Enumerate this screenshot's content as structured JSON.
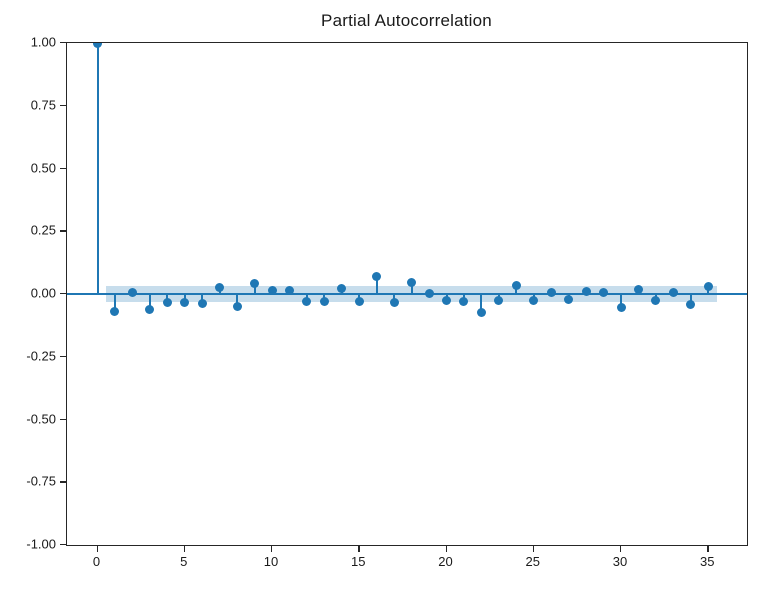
{
  "chart_data": {
    "type": "stem",
    "title": "Partial Autocorrelation",
    "xlabel": "",
    "ylabel": "",
    "lags": [
      0,
      1,
      2,
      3,
      4,
      5,
      6,
      7,
      8,
      9,
      10,
      11,
      12,
      13,
      14,
      15,
      16,
      17,
      18,
      19,
      20,
      21,
      22,
      23,
      24,
      25,
      26,
      27,
      28,
      29,
      30,
      31,
      32,
      33,
      34,
      35
    ],
    "values": [
      1.0,
      -0.07,
      0.004,
      -0.063,
      -0.035,
      -0.033,
      -0.038,
      0.024,
      -0.05,
      0.041,
      0.013,
      0.013,
      -0.031,
      -0.031,
      0.02,
      -0.03,
      0.068,
      -0.033,
      0.045,
      0.003,
      -0.027,
      -0.029,
      -0.075,
      -0.027,
      0.035,
      -0.027,
      0.004,
      -0.021,
      0.01,
      0.004,
      -0.055,
      0.016,
      -0.026,
      0.004,
      -0.04,
      0.028
    ],
    "confidence_band": {
      "lower": -0.031,
      "upper": 0.031,
      "from_lag": 0.5,
      "to_lag": 35.5
    },
    "xlim": [
      -1.73,
      37.25
    ],
    "ylim": [
      -1.0,
      1.0
    ],
    "grid": false,
    "legend": null,
    "x_axis": {
      "ticks": [
        {
          "value": 0,
          "label": "0"
        },
        {
          "value": 5,
          "label": "5"
        },
        {
          "value": 10,
          "label": "10"
        },
        {
          "value": 15,
          "label": "15"
        },
        {
          "value": 20,
          "label": "20"
        },
        {
          "value": 25,
          "label": "25"
        },
        {
          "value": 30,
          "label": "30"
        },
        {
          "value": 35,
          "label": "35"
        }
      ]
    },
    "y_axis": {
      "ticks": [
        {
          "value": 1.0,
          "label": "1.00"
        },
        {
          "value": 0.75,
          "label": "0.75"
        },
        {
          "value": 0.5,
          "label": "0.50"
        },
        {
          "value": 0.25,
          "label": "0.25"
        },
        {
          "value": 0.0,
          "label": "0.00"
        },
        {
          "value": -0.25,
          "label": "-0.25"
        },
        {
          "value": -0.5,
          "label": "-0.50"
        },
        {
          "value": -0.75,
          "label": "-0.75"
        },
        {
          "value": -1.0,
          "label": "-1.00"
        }
      ]
    },
    "colors": {
      "stem": "#1f77b4",
      "marker": "#1f77b4",
      "confidence_band": "#c7ddec",
      "spine": "#262626",
      "text": "#1a1a1a",
      "background": "#ffffff"
    }
  }
}
